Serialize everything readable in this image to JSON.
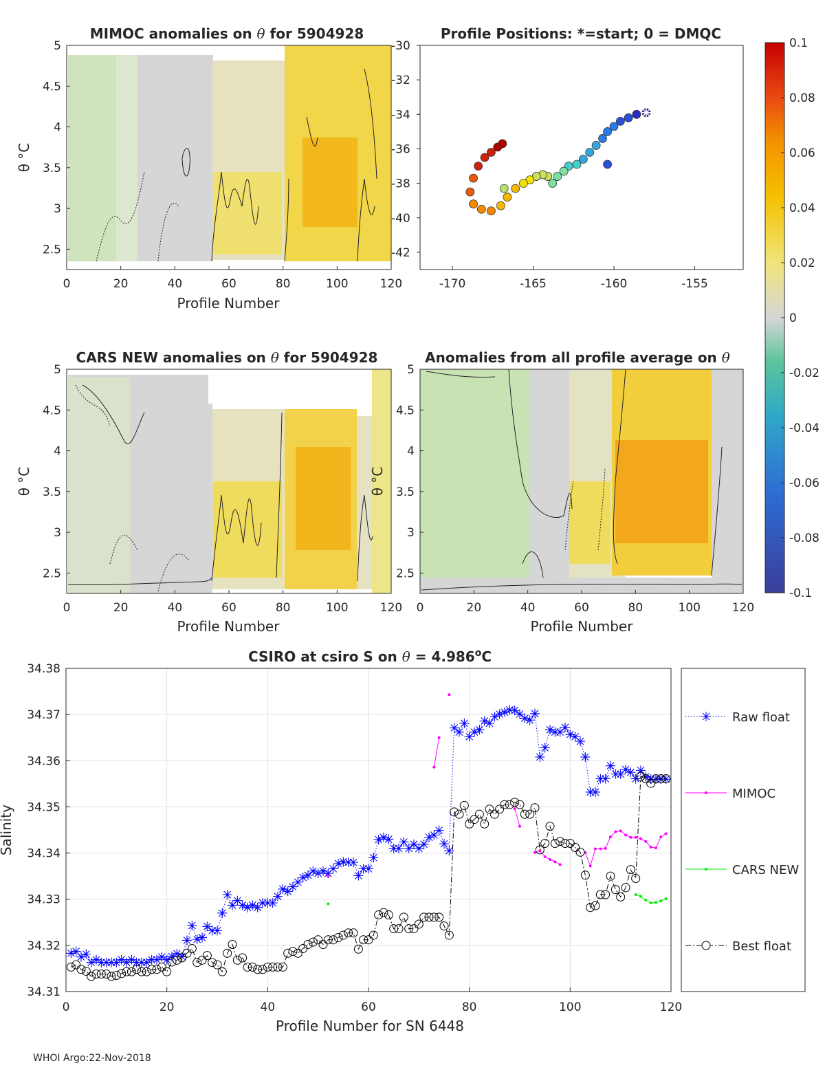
{
  "colors": {
    "axis": "#262626",
    "grid": "#dcdcdc",
    "raw": "#0000ff",
    "mimoc": "#ff00ff",
    "cars": "#00ee00",
    "best": "#000000"
  },
  "colorbar": {
    "ticks": [
      "0.1",
      "0.08",
      "0.06",
      "0.04",
      "0.02",
      "0",
      "-0.02",
      "-0.04",
      "-0.06",
      "-0.08",
      "-0.1"
    ],
    "range": [
      -0.1,
      0.1
    ]
  },
  "footer": "WHOI Argo:22-Nov-2018",
  "chart_data": [
    {
      "id": "mimoc",
      "type": "heatmap",
      "title": "MIMOC anomalies on θ  for 5904928",
      "title_prefix": "MIMOC anomalies on ",
      "title_suffix": "  for 5904928",
      "xlabel": "Profile Number",
      "ylabel": "θ °C",
      "xlim": [
        0,
        120
      ],
      "ylim": [
        2.25,
        5
      ],
      "xticks": [
        "0",
        "20",
        "40",
        "60",
        "80",
        "100",
        "120"
      ],
      "yticks": [
        "2.5",
        "3",
        "3.5",
        "4",
        "4.5",
        "5"
      ],
      "data_extent": [
        0.5,
        120.5,
        2.4,
        4.8
      ],
      "note": "salinity anomaly field, approx: -0.01 for profiles 1-55, ~0.015 for 55-80, ~0.03 for 80-120 peaking 0.04 near theta 3.2"
    },
    {
      "id": "positions",
      "type": "scatter",
      "title": "Profile Positions: *=start; 0 = DMQC",
      "xlim": [
        -172,
        -152
      ],
      "ylim": [
        -43,
        -30
      ],
      "xticks": [
        "-170",
        "-165",
        "-160",
        "-155"
      ],
      "yticks": [
        "-30",
        "-32",
        "-34",
        "-36",
        "-38",
        "-40",
        "-42"
      ],
      "track": [
        [
          -158.0,
          -33.9
        ],
        [
          -158.6,
          -34.0
        ],
        [
          -159.1,
          -34.2
        ],
        [
          -159.6,
          -34.4
        ],
        [
          -160.0,
          -34.7
        ],
        [
          -160.4,
          -35.0
        ],
        [
          -160.7,
          -35.4
        ],
        [
          -161.1,
          -35.8
        ],
        [
          -161.5,
          -36.2
        ],
        [
          -161.9,
          -36.6
        ],
        [
          -162.3,
          -36.9
        ],
        [
          -162.8,
          -37.0
        ],
        [
          -163.1,
          -37.3
        ],
        [
          -163.5,
          -37.6
        ],
        [
          -163.8,
          -38.0
        ],
        [
          -164.1,
          -37.6
        ],
        [
          -164.4,
          -37.5
        ],
        [
          -164.8,
          -37.6
        ],
        [
          -165.2,
          -37.8
        ],
        [
          -165.6,
          -38.0
        ],
        [
          -166.1,
          -38.3
        ],
        [
          -166.6,
          -38.8
        ],
        [
          -167.0,
          -39.3
        ],
        [
          -167.6,
          -39.6
        ],
        [
          -168.2,
          -39.5
        ],
        [
          -168.7,
          -39.2
        ],
        [
          -168.9,
          -38.5
        ],
        [
          -168.7,
          -37.7
        ],
        [
          -168.4,
          -37.0
        ],
        [
          -168.0,
          -36.5
        ],
        [
          -167.6,
          -36.2
        ],
        [
          -167.2,
          -35.9
        ],
        [
          -166.9,
          -35.7
        ]
      ],
      "cluster_ends": [
        [
          -166.8,
          -38.3
        ],
        [
          -160.4,
          -36.9
        ]
      ]
    },
    {
      "id": "cars",
      "type": "heatmap",
      "title": "CARS NEW anomalies on θ for 5904928",
      "title_prefix": "CARS NEW anomalies on ",
      "title_suffix": " for 5904928",
      "xlabel": "Profile Number",
      "ylabel": "θ °C",
      "xlim": [
        0,
        120
      ],
      "ylim": [
        2.25,
        5
      ],
      "xticks": [
        "0",
        "20",
        "40",
        "60",
        "80",
        "100",
        "120"
      ],
      "yticks": [
        "2.5",
        "3",
        "3.5",
        "4",
        "4.5",
        "5"
      ],
      "data_extent": [
        0.5,
        120.5,
        2.3,
        4.9
      ]
    },
    {
      "id": "allavg",
      "type": "heatmap",
      "title": "Anomalies from all profile average on θ",
      "title_prefix": "Anomalies from all profile average on ",
      "title_suffix": "",
      "xlabel": "Profile Number",
      "ylabel": "θ °C",
      "xlim": [
        0,
        120
      ],
      "ylim": [
        2.25,
        5
      ],
      "xticks": [
        "0",
        "20",
        "40",
        "60",
        "80",
        "100",
        "120"
      ],
      "yticks": [
        "2.5",
        "3",
        "3.5",
        "4",
        "4.5",
        "5"
      ],
      "data_extent": [
        0.5,
        120.5,
        2.25,
        5.0
      ]
    },
    {
      "id": "salinity",
      "type": "line",
      "title": "CSIRO at csiro S on θ = 4.986°C",
      "title_prefix": "CSIRO at csiro S on ",
      "title_mid": " = 4.986",
      "title_sup": "o",
      "title_suffix": "C",
      "xlabel": "Profile Number for SN 6448",
      "ylabel": "Salinity",
      "xlim": [
        0,
        120
      ],
      "ylim": [
        34.31,
        34.38
      ],
      "xticks": [
        "0",
        "20",
        "40",
        "60",
        "80",
        "100",
        "120"
      ],
      "yticks": [
        "34.31",
        "34.32",
        "34.33",
        "34.34",
        "34.35",
        "34.36",
        "34.37",
        "34.38"
      ],
      "legend": [
        "Raw float",
        "MIMOC",
        "CARS NEW",
        "Best float"
      ],
      "series": [
        {
          "name": "Raw float",
          "x": [
            1,
            2,
            3,
            4,
            5,
            6,
            7,
            8,
            9,
            10,
            11,
            12,
            13,
            14,
            15,
            16,
            17,
            18,
            19,
            20,
            21,
            22,
            23,
            24,
            25,
            26,
            27,
            28,
            29,
            30,
            31,
            32,
            33,
            34,
            35,
            36,
            37,
            38,
            39,
            40,
            41,
            42,
            43,
            44,
            45,
            46,
            47,
            48,
            49,
            50,
            51,
            52,
            53,
            54,
            55,
            56,
            57,
            58,
            59,
            60,
            61,
            62,
            63,
            64,
            65,
            66,
            67,
            68,
            69,
            70,
            71,
            72,
            73,
            74,
            75,
            76,
            77,
            78,
            79,
            80,
            81,
            82,
            83,
            84,
            85,
            86,
            87,
            88,
            89,
            90,
            91,
            92,
            93,
            94,
            95,
            96,
            97,
            98,
            99,
            100,
            101,
            102,
            103,
            104,
            105,
            106,
            107,
            108,
            109,
            110,
            111,
            112,
            113,
            114,
            115,
            116,
            117,
            118,
            119
          ],
          "values": [
            34.3183,
            34.3187,
            34.3175,
            34.3181,
            34.3163,
            34.3169,
            34.3163,
            34.3163,
            34.3163,
            34.3163,
            34.3169,
            34.3163,
            34.3169,
            34.3163,
            34.3163,
            34.3163,
            34.3169,
            34.3169,
            34.3175,
            34.3169,
            34.3176,
            34.3182,
            34.3176,
            34.3211,
            34.3243,
            34.3213,
            34.3217,
            34.3241,
            34.3232,
            34.3232,
            34.327,
            34.331,
            34.3287,
            34.3297,
            34.3287,
            34.3282,
            34.3287,
            34.3282,
            34.3292,
            34.3292,
            34.3292,
            34.3306,
            34.3322,
            34.3317,
            34.3327,
            34.3337,
            34.3347,
            34.3352,
            34.3361,
            34.3356,
            34.3361,
            34.3356,
            34.3366,
            34.3377,
            34.3381,
            34.338,
            34.338,
            34.3351,
            34.3366,
            34.3366,
            34.339,
            34.3429,
            34.3434,
            34.343,
            34.341,
            34.341,
            34.3424,
            34.341,
            34.3419,
            34.341,
            34.3419,
            34.3434,
            34.3439,
            34.3449,
            34.342,
            34.3405,
            34.3671,
            34.3662,
            34.3681,
            34.3652,
            34.3662,
            34.3667,
            34.3686,
            34.3681,
            34.3695,
            34.3701,
            34.3705,
            34.371,
            34.3709,
            34.3701,
            34.3692,
            34.3688,
            34.3702,
            34.3608,
            34.3628,
            34.3667,
            34.3662,
            34.3662,
            34.3672,
            34.3657,
            34.3652,
            34.3642,
            34.3608,
            34.3532,
            34.3532,
            34.3561,
            34.3561,
            34.3589,
            34.3571,
            34.3571,
            34.3581,
            34.3575,
            34.3561,
            34.3579,
            34.3565,
            34.356,
            34.356,
            34.356,
            34.356
          ]
        },
        {
          "name": "MIMOC",
          "segments": [
            {
              "x": [
                52
              ],
              "values": [
                34.335
              ]
            },
            {
              "x": [
                73,
                74
              ],
              "values": [
                34.3586,
                34.365
              ]
            },
            {
              "x": [
                76
              ],
              "values": [
                34.3743
              ]
            },
            {
              "x": [
                89,
                90
              ],
              "values": [
                34.3496,
                34.3458
              ]
            },
            {
              "x": [
                93,
                94,
                95,
                96,
                97,
                98
              ],
              "values": [
                34.3401,
                34.3405,
                34.3392,
                34.3386,
                34.3381,
                34.3375
              ]
            },
            {
              "x": [
                103,
                104,
                105,
                106,
                107,
                108,
                109,
                110,
                111,
                112,
                113,
                114,
                115,
                116,
                117,
                118,
                119
              ],
              "values": [
                34.3401,
                34.3372,
                34.3409,
                34.3409,
                34.341,
                34.3435,
                34.3446,
                34.3448,
                34.3439,
                34.3434,
                34.3434,
                34.3431,
                34.3425,
                34.3413,
                34.3411,
                34.3435,
                34.3442
              ]
            }
          ]
        },
        {
          "name": "CARS NEW",
          "segments": [
            {
              "x": [
                52
              ],
              "values": [
                34.329
              ]
            },
            {
              "x": [
                113,
                114,
                115,
                116,
                117,
                118,
                119
              ],
              "values": [
                34.331,
                34.3306,
                34.3298,
                34.3292,
                34.3293,
                34.3296,
                34.3301
              ]
            }
          ]
        },
        {
          "name": "Best float",
          "x": [
            1,
            2,
            3,
            4,
            5,
            6,
            7,
            8,
            9,
            10,
            11,
            12,
            13,
            14,
            15,
            16,
            17,
            18,
            19,
            20,
            21,
            22,
            23,
            24,
            25,
            26,
            27,
            28,
            29,
            30,
            31,
            32,
            33,
            34,
            35,
            36,
            37,
            38,
            39,
            40,
            41,
            42,
            43,
            44,
            45,
            46,
            47,
            48,
            49,
            50,
            51,
            52,
            53,
            54,
            55,
            56,
            57,
            58,
            59,
            60,
            61,
            62,
            63,
            64,
            65,
            66,
            67,
            68,
            69,
            70,
            71,
            72,
            73,
            74,
            75,
            76,
            77,
            78,
            79,
            80,
            81,
            82,
            83,
            84,
            85,
            86,
            87,
            88,
            89,
            90,
            91,
            92,
            93,
            94,
            95,
            96,
            97,
            98,
            99,
            100,
            101,
            102,
            103,
            104,
            105,
            106,
            107,
            108,
            109,
            110,
            111,
            112,
            113,
            114,
            115,
            116,
            117,
            118,
            119
          ],
          "values": [
            34.3153,
            34.3158,
            34.3148,
            34.3144,
            34.3133,
            34.3138,
            34.3138,
            34.3138,
            34.3133,
            34.3135,
            34.3139,
            34.3143,
            34.3143,
            34.3148,
            34.3143,
            34.3143,
            34.3148,
            34.3148,
            34.3153,
            34.3143,
            34.3164,
            34.3168,
            34.3173,
            34.3183,
            34.3193,
            34.3163,
            34.3168,
            34.3178,
            34.3163,
            34.3158,
            34.3143,
            34.3183,
            34.3202,
            34.3168,
            34.3173,
            34.3153,
            34.3153,
            34.3148,
            34.3148,
            34.3153,
            34.3153,
            34.3153,
            34.3153,
            34.3183,
            34.3187,
            34.3183,
            34.3193,
            34.3202,
            34.3207,
            34.3212,
            34.3202,
            34.3212,
            34.3212,
            34.3217,
            34.3222,
            34.3227,
            34.3227,
            34.3192,
            34.3212,
            34.3212,
            34.3222,
            34.3266,
            34.3271,
            34.3266,
            34.3236,
            34.3236,
            34.3261,
            34.3236,
            34.3236,
            34.3246,
            34.3261,
            34.3261,
            34.3261,
            34.3261,
            34.3242,
            34.3222,
            34.3489,
            34.3484,
            34.3503,
            34.3463,
            34.3473,
            34.3484,
            34.3463,
            34.3495,
            34.3484,
            34.3495,
            34.3505,
            34.3505,
            34.351,
            34.3505,
            34.3484,
            34.3484,
            34.3498,
            34.3407,
            34.3421,
            34.3458,
            34.3421,
            34.3425,
            34.3421,
            34.3421,
            34.3412,
            34.3402,
            34.3352,
            34.3282,
            34.3286,
            34.331,
            34.331,
            34.335,
            34.3321,
            34.3305,
            34.3325,
            34.3364,
            34.3345,
            34.3566,
            34.3561,
            34.3551,
            34.3561,
            34.3561,
            34.3561
          ]
        }
      ]
    }
  ]
}
